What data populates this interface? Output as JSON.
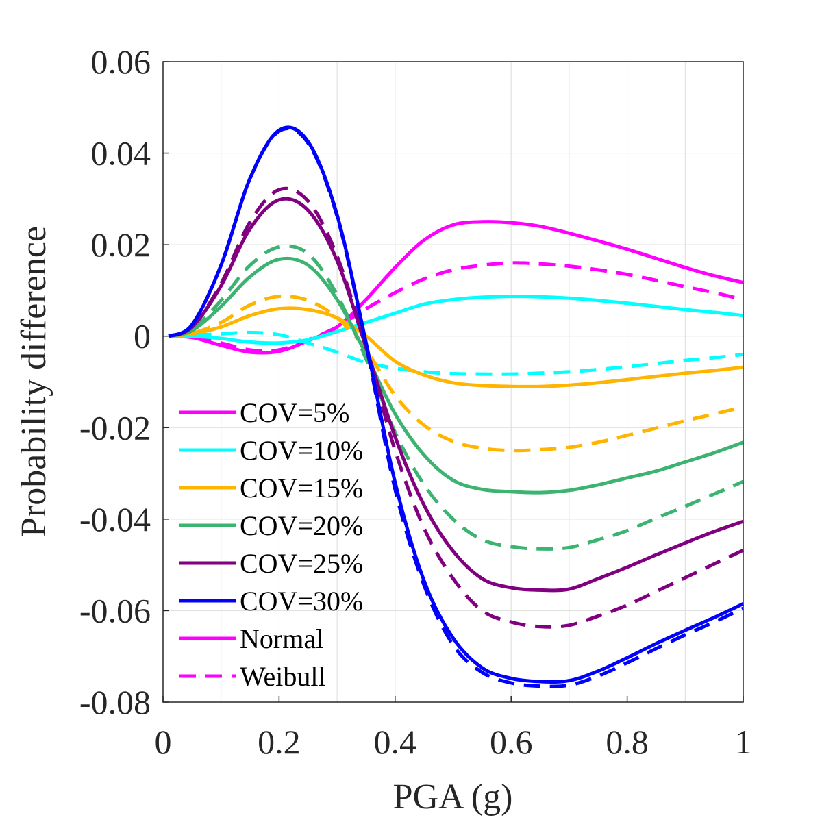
{
  "chart_data": {
    "type": "line",
    "xlabel": "PGA (g)",
    "ylabel": "Probability difference",
    "xlim": [
      0,
      1
    ],
    "ylim": [
      -0.08,
      0.06
    ],
    "x_ticks": [
      0,
      0.2,
      0.4,
      0.6,
      0.8,
      1
    ],
    "x_tick_labels": [
      "0",
      "0.2",
      "0.4",
      "0.6",
      "0.8",
      "1"
    ],
    "y_ticks": [
      -0.08,
      -0.06,
      -0.04,
      -0.02,
      0,
      0.02,
      0.04,
      0.06
    ],
    "y_tick_labels": [
      "-0.08",
      "-0.06",
      "-0.04",
      "-0.02",
      "0",
      "0.02",
      "0.04",
      "0.06"
    ],
    "grid": true,
    "legend_position": "lower-left",
    "legend": [
      {
        "label": "COV=5%",
        "color": "#ff00ff",
        "style": "solid"
      },
      {
        "label": "COV=10%",
        "color": "#00ffff",
        "style": "solid"
      },
      {
        "label": "COV=15%",
        "color": "#ffb400",
        "style": "solid"
      },
      {
        "label": "COV=20%",
        "color": "#3cb371",
        "style": "solid"
      },
      {
        "label": "COV=25%",
        "color": "#800080",
        "style": "solid"
      },
      {
        "label": "COV=30%",
        "color": "#0000ff",
        "style": "solid"
      },
      {
        "label": "Normal",
        "color": "#ff00ff",
        "style": "solid"
      },
      {
        "label": "Weibull",
        "color": "#ff00ff",
        "style": "dashed"
      }
    ],
    "x": [
      0.01,
      0.05,
      0.1,
      0.15,
      0.2,
      0.25,
      0.3,
      0.35,
      0.4,
      0.45,
      0.5,
      0.55,
      0.6,
      0.65,
      0.7,
      0.75,
      0.8,
      0.85,
      0.9,
      0.95,
      1.0
    ],
    "series": [
      {
        "cov": "5%",
        "distribution": "Normal",
        "color": "#ff00ff",
        "style": "solid",
        "values": [
          0,
          -0.0003,
          -0.002,
          -0.0035,
          -0.0033,
          -0.001,
          0.002,
          0.008,
          0.015,
          0.021,
          0.0243,
          0.025,
          0.0248,
          0.024,
          0.0225,
          0.0208,
          0.019,
          0.017,
          0.015,
          0.0132,
          0.0117
        ]
      },
      {
        "cov": "5%",
        "distribution": "Weibull",
        "color": "#ff00ff",
        "style": "dashed",
        "values": [
          0,
          -0.0002,
          -0.0015,
          -0.003,
          -0.003,
          -0.0008,
          0.002,
          0.006,
          0.0095,
          0.0125,
          0.0145,
          0.0155,
          0.016,
          0.0158,
          0.0153,
          0.0145,
          0.0135,
          0.0122,
          0.0108,
          0.0095,
          0.008
        ]
      },
      {
        "cov": "10%",
        "distribution": "Normal",
        "color": "#00ffff",
        "style": "solid",
        "values": [
          0,
          0,
          -0.0005,
          -0.0013,
          -0.0015,
          -0.0008,
          0.001,
          0.003,
          0.005,
          0.007,
          0.008,
          0.0085,
          0.0087,
          0.0086,
          0.0083,
          0.0078,
          0.0072,
          0.0065,
          0.0058,
          0.0052,
          0.0045
        ]
      },
      {
        "cov": "10%",
        "distribution": "Weibull",
        "color": "#00ffff",
        "style": "dashed",
        "values": [
          0,
          0.0002,
          0.0005,
          0.0008,
          0.0003,
          -0.0015,
          -0.0035,
          -0.0058,
          -0.007,
          -0.0078,
          -0.0082,
          -0.0083,
          -0.0083,
          -0.0081,
          -0.0078,
          -0.0073,
          -0.0067,
          -0.006,
          -0.0053,
          -0.0047,
          -0.004
        ]
      },
      {
        "cov": "15%",
        "distribution": "Normal",
        "color": "#ffb400",
        "style": "solid",
        "values": [
          0,
          0.0005,
          0.002,
          0.0045,
          0.006,
          0.0058,
          0.004,
          0,
          -0.0055,
          -0.0085,
          -0.0102,
          -0.0108,
          -0.011,
          -0.011,
          -0.0107,
          -0.0102,
          -0.0095,
          -0.0088,
          -0.0081,
          -0.0075,
          -0.0068
        ]
      },
      {
        "cov": "15%",
        "distribution": "Weibull",
        "color": "#ffb400",
        "style": "dashed",
        "values": [
          0,
          0.0006,
          0.003,
          0.0068,
          0.0087,
          0.0078,
          0.004,
          -0.003,
          -0.013,
          -0.0195,
          -0.023,
          -0.0245,
          -0.025,
          -0.0248,
          -0.0243,
          -0.0232,
          -0.0217,
          -0.0201,
          -0.0185,
          -0.017,
          -0.0155
        ]
      },
      {
        "cov": "20%",
        "distribution": "Normal",
        "color": "#3cb371",
        "style": "solid",
        "values": [
          0,
          0.0012,
          0.0065,
          0.013,
          0.0168,
          0.0155,
          0.008,
          -0.004,
          -0.017,
          -0.026,
          -0.0315,
          -0.0335,
          -0.034,
          -0.0342,
          -0.0337,
          -0.0325,
          -0.031,
          -0.0295,
          -0.0275,
          -0.0255,
          -0.0232
        ]
      },
      {
        "cov": "20%",
        "distribution": "Weibull",
        "color": "#3cb371",
        "style": "dashed",
        "values": [
          0,
          0.0015,
          0.0078,
          0.0155,
          0.0195,
          0.018,
          0.009,
          -0.005,
          -0.021,
          -0.0325,
          -0.04,
          -0.0445,
          -0.046,
          -0.0465,
          -0.0462,
          -0.0445,
          -0.0425,
          -0.0398,
          -0.0372,
          -0.0345,
          -0.0318
        ]
      },
      {
        "cov": "25%",
        "distribution": "Normal",
        "color": "#800080",
        "style": "solid",
        "values": [
          0,
          0.002,
          0.011,
          0.0235,
          0.0298,
          0.0275,
          0.0165,
          -0.0025,
          -0.022,
          -0.037,
          -0.047,
          -0.053,
          -0.055,
          -0.0555,
          -0.0553,
          -0.053,
          -0.0505,
          -0.0478,
          -0.0452,
          -0.0427,
          -0.0405
        ]
      },
      {
        "cov": "25%",
        "distribution": "Weibull",
        "color": "#800080",
        "style": "dashed",
        "values": [
          0,
          0.002,
          0.0115,
          0.025,
          0.032,
          0.0295,
          0.0175,
          -0.0025,
          -0.025,
          -0.042,
          -0.053,
          -0.06,
          -0.0625,
          -0.0635,
          -0.0632,
          -0.0612,
          -0.0588,
          -0.0558,
          -0.0528,
          -0.0498,
          -0.0468
        ]
      },
      {
        "cov": "30%",
        "distribution": "Normal",
        "color": "#0000ff",
        "style": "solid",
        "values": [
          0,
          0.0025,
          0.0155,
          0.0345,
          0.045,
          0.0425,
          0.0265,
          -0.0015,
          -0.032,
          -0.0535,
          -0.066,
          -0.0725,
          -0.0748,
          -0.0755,
          -0.0753,
          -0.0732,
          -0.0703,
          -0.0672,
          -0.0643,
          -0.0615,
          -0.0585
        ]
      },
      {
        "cov": "30%",
        "distribution": "Weibull",
        "color": "#0000ff",
        "style": "dashed",
        "values": [
          0,
          0.0025,
          0.0155,
          0.0345,
          0.0448,
          0.0422,
          0.0262,
          -0.002,
          -0.0335,
          -0.0545,
          -0.0675,
          -0.0735,
          -0.0758,
          -0.0765,
          -0.0763,
          -0.0743,
          -0.0714,
          -0.0683,
          -0.0653,
          -0.0625,
          -0.0595
        ]
      }
    ]
  }
}
